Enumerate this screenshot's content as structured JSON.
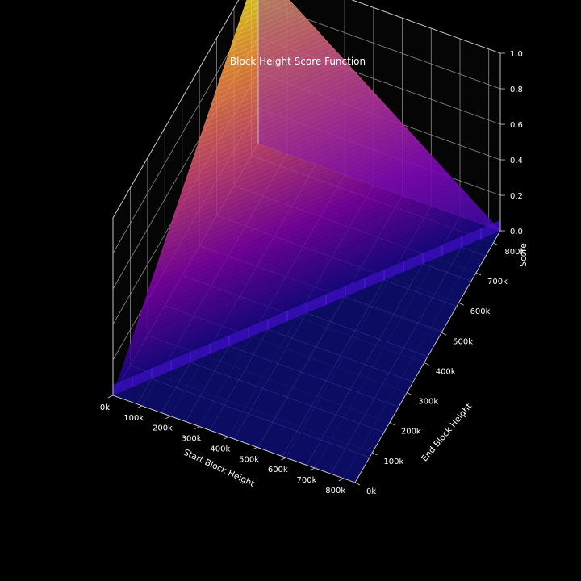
{
  "chart_data": {
    "type": "surface3d",
    "title": "Block Height Score Function",
    "xlabel": "Start Block Height",
    "ylabel": "End Block Height",
    "zlabel": "Score",
    "x_ticks": [
      "0k",
      "100k",
      "200k",
      "300k",
      "400k",
      "500k",
      "600k",
      "700k",
      "800k"
    ],
    "y_ticks": [
      "0k",
      "100k",
      "200k",
      "300k",
      "400k",
      "500k",
      "600k",
      "700k",
      "800k"
    ],
    "z_ticks": [
      "0.0",
      "0.2",
      "0.4",
      "0.6",
      "0.8",
      "1.0"
    ],
    "xlim": [
      0,
      840000
    ],
    "ylim": [
      0,
      840000
    ],
    "zlim": [
      0,
      1
    ],
    "colormap": "plasma",
    "surface_peak": {
      "start": 0,
      "end": 840000,
      "score": 1.0
    },
    "surface_corners": [
      {
        "start": 0,
        "end": 0,
        "score": 0.0
      },
      {
        "start": 0,
        "end": 840000,
        "score": 1.0
      },
      {
        "start": 840000,
        "end": 840000,
        "score": 0.0
      }
    ],
    "base_color": "#0d0d6b",
    "background": "#000000",
    "grid": true
  }
}
